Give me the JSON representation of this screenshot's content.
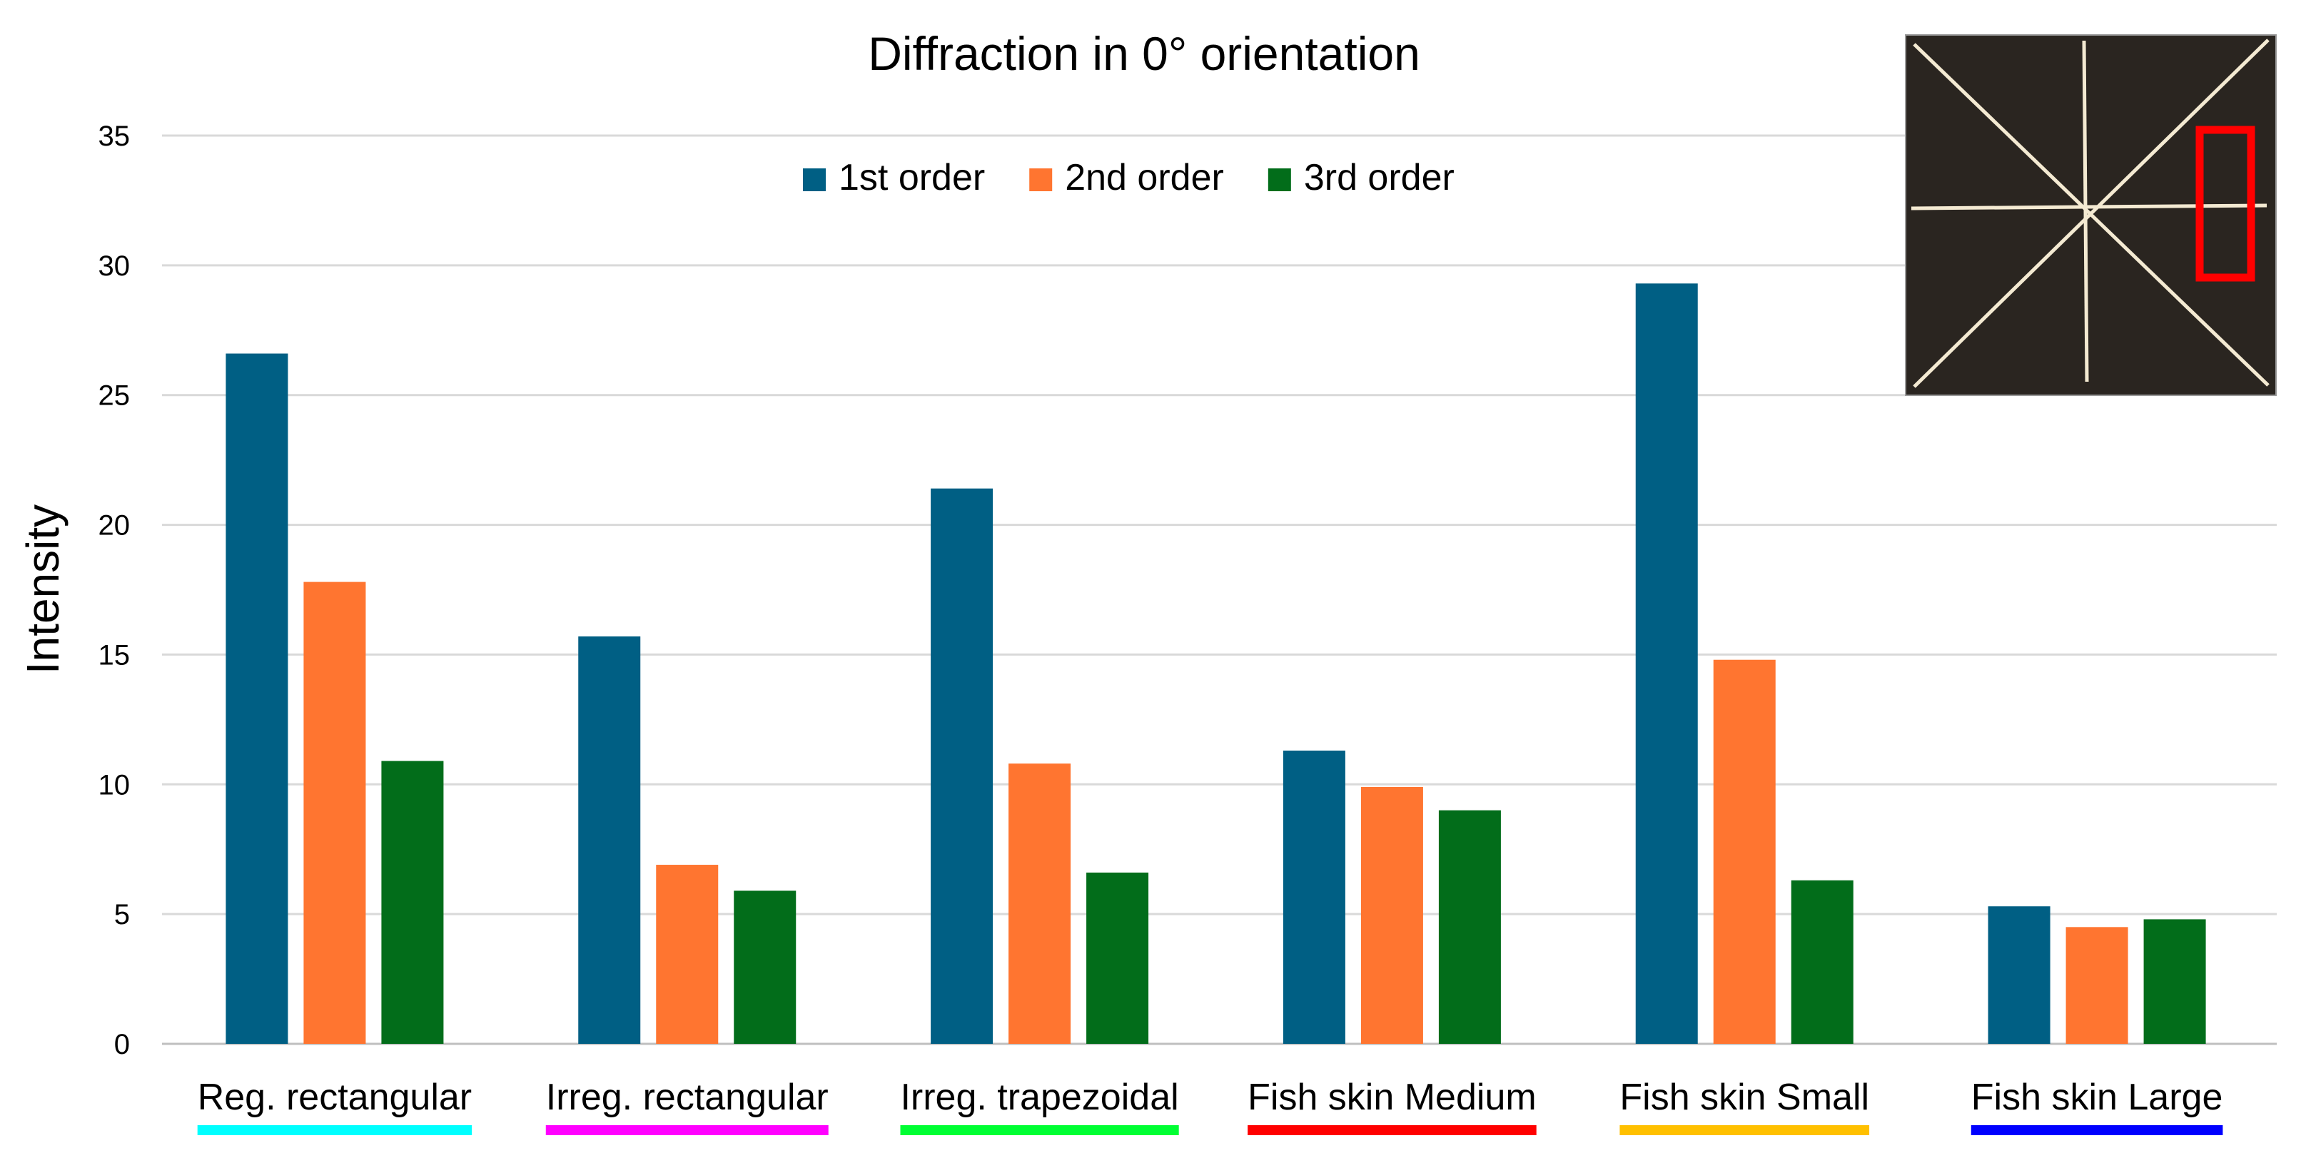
{
  "chart_data": {
    "type": "bar",
    "title": "Diffraction in 0° orientation",
    "xlabel": "",
    "ylabel": "Intensity",
    "ylim": [
      0,
      35
    ],
    "yticks": [
      "0",
      "5",
      "10",
      "15",
      "20",
      "25",
      "30",
      "35"
    ],
    "grid": true,
    "legend_position": "top-center",
    "categories": [
      "Reg. rectangular",
      "Irreg. rectangular",
      "Irreg. trapezoidal",
      "Fish skin Medium",
      "Fish skin Small",
      "Fish skin Large"
    ],
    "category_underline_colors": [
      "#00FFFF",
      "#FF00FF",
      "#00FF33",
      "#FF0000",
      "#FFC000",
      "#0000FF"
    ],
    "series": [
      {
        "name": "1st order",
        "color": "#005F84",
        "values": [
          26.6,
          15.7,
          21.4,
          11.3,
          29.3,
          5.3
        ]
      },
      {
        "name": "2nd order",
        "color": "#FF7530",
        "values": [
          17.8,
          6.9,
          10.8,
          9.9,
          14.8,
          4.5
        ]
      },
      {
        "name": "3rd order",
        "color": "#026D1A",
        "values": [
          10.9,
          5.9,
          6.6,
          9.0,
          6.3,
          4.8
        ]
      }
    ],
    "inset": {
      "description_icon": "diffraction-star-photo-icon",
      "highlight_color": "#FF0000"
    }
  }
}
